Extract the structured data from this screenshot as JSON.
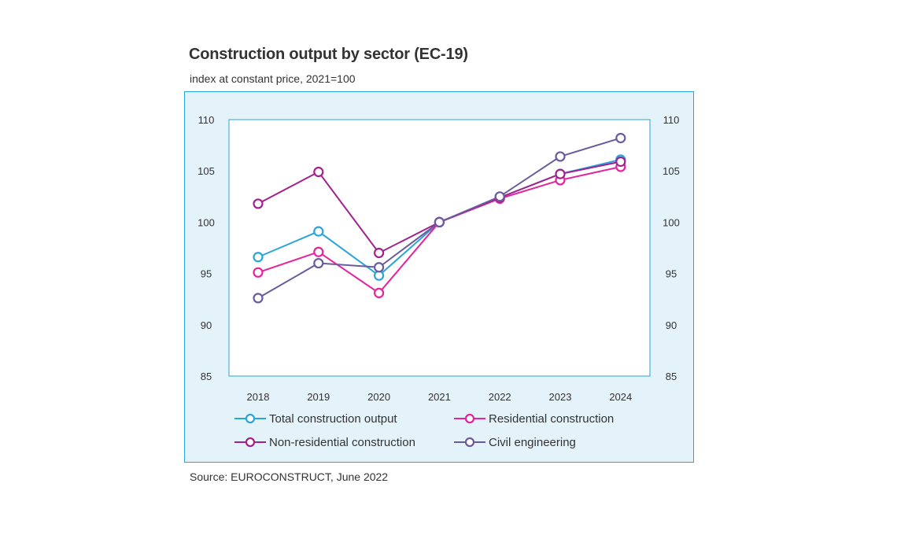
{
  "chart_data": {
    "type": "line",
    "title": "Construction output by sector (EC-19)",
    "subtitle": "index at constant price, 2021=100",
    "source": "Source: EUROCONSTRUCT, June 2022",
    "xlabel": "",
    "ylabel": "",
    "categories": [
      "2018",
      "2019",
      "2020",
      "2021",
      "2022",
      "2023",
      "2024"
    ],
    "ylim": [
      85,
      110
    ],
    "yticks": [
      85,
      90,
      95,
      100,
      105,
      110
    ],
    "secondary_y_axis": true,
    "grid": false,
    "legend_position": "bottom",
    "series": [
      {
        "name": "Total construction output",
        "color": "#2aa5d9",
        "values": [
          96.6,
          99.1,
          94.8,
          100.0,
          102.4,
          104.7,
          106.1
        ]
      },
      {
        "name": "Residential construction",
        "color": "#e5239a",
        "values": [
          95.1,
          97.1,
          93.1,
          100.0,
          102.3,
          104.1,
          105.4
        ]
      },
      {
        "name": "Non-residential construction",
        "color": "#a3218c",
        "values": [
          101.8,
          104.9,
          97.0,
          100.0,
          102.4,
          104.7,
          105.9
        ]
      },
      {
        "name": "Civil engineering",
        "color": "#6b5b9e",
        "values": [
          92.6,
          96.0,
          95.6,
          100.0,
          102.5,
          106.4,
          108.2
        ]
      }
    ]
  }
}
